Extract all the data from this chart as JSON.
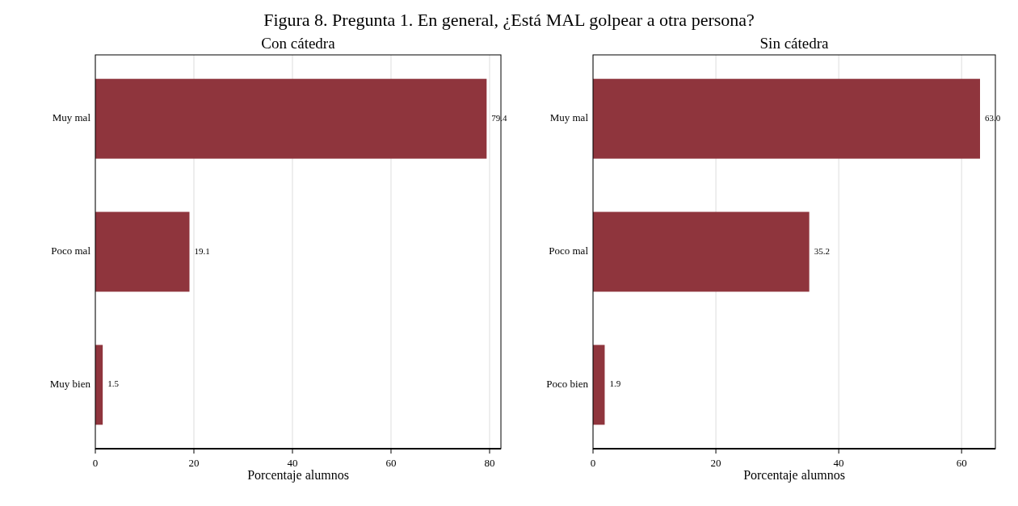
{
  "chart_data": [
    {
      "type": "bar",
      "orientation": "horizontal",
      "title": "Con cátedra",
      "xlabel": "Porcentaje alumnos",
      "annotations": [
        "Figura 8. Pregunta 1. En general, ¿Está MAL golpear a otra persona?"
      ],
      "categories": [
        "Muy mal",
        "Poco mal",
        "Muy bien"
      ],
      "values": [
        79.4,
        19.1,
        1.5
      ],
      "value_labels": [
        "79.4",
        "19.1",
        "1.5"
      ],
      "color": "#8f353d",
      "xlim": [
        0,
        82.3
      ],
      "xticks": [
        0,
        20,
        40,
        60,
        80
      ],
      "grid": "x"
    },
    {
      "type": "bar",
      "orientation": "horizontal",
      "title": "Sin cátedra",
      "xlabel": "Porcentaje alumnos",
      "categories": [
        "Muy mal",
        "Poco mal",
        "Poco bien"
      ],
      "values": [
        63.0,
        35.2,
        1.9
      ],
      "value_labels": [
        "63.0",
        "35.2",
        "1.9"
      ],
      "color": "#8f353d",
      "xlim": [
        0,
        65.5
      ],
      "xticks": [
        0,
        20,
        40,
        60
      ],
      "grid": "x"
    }
  ]
}
